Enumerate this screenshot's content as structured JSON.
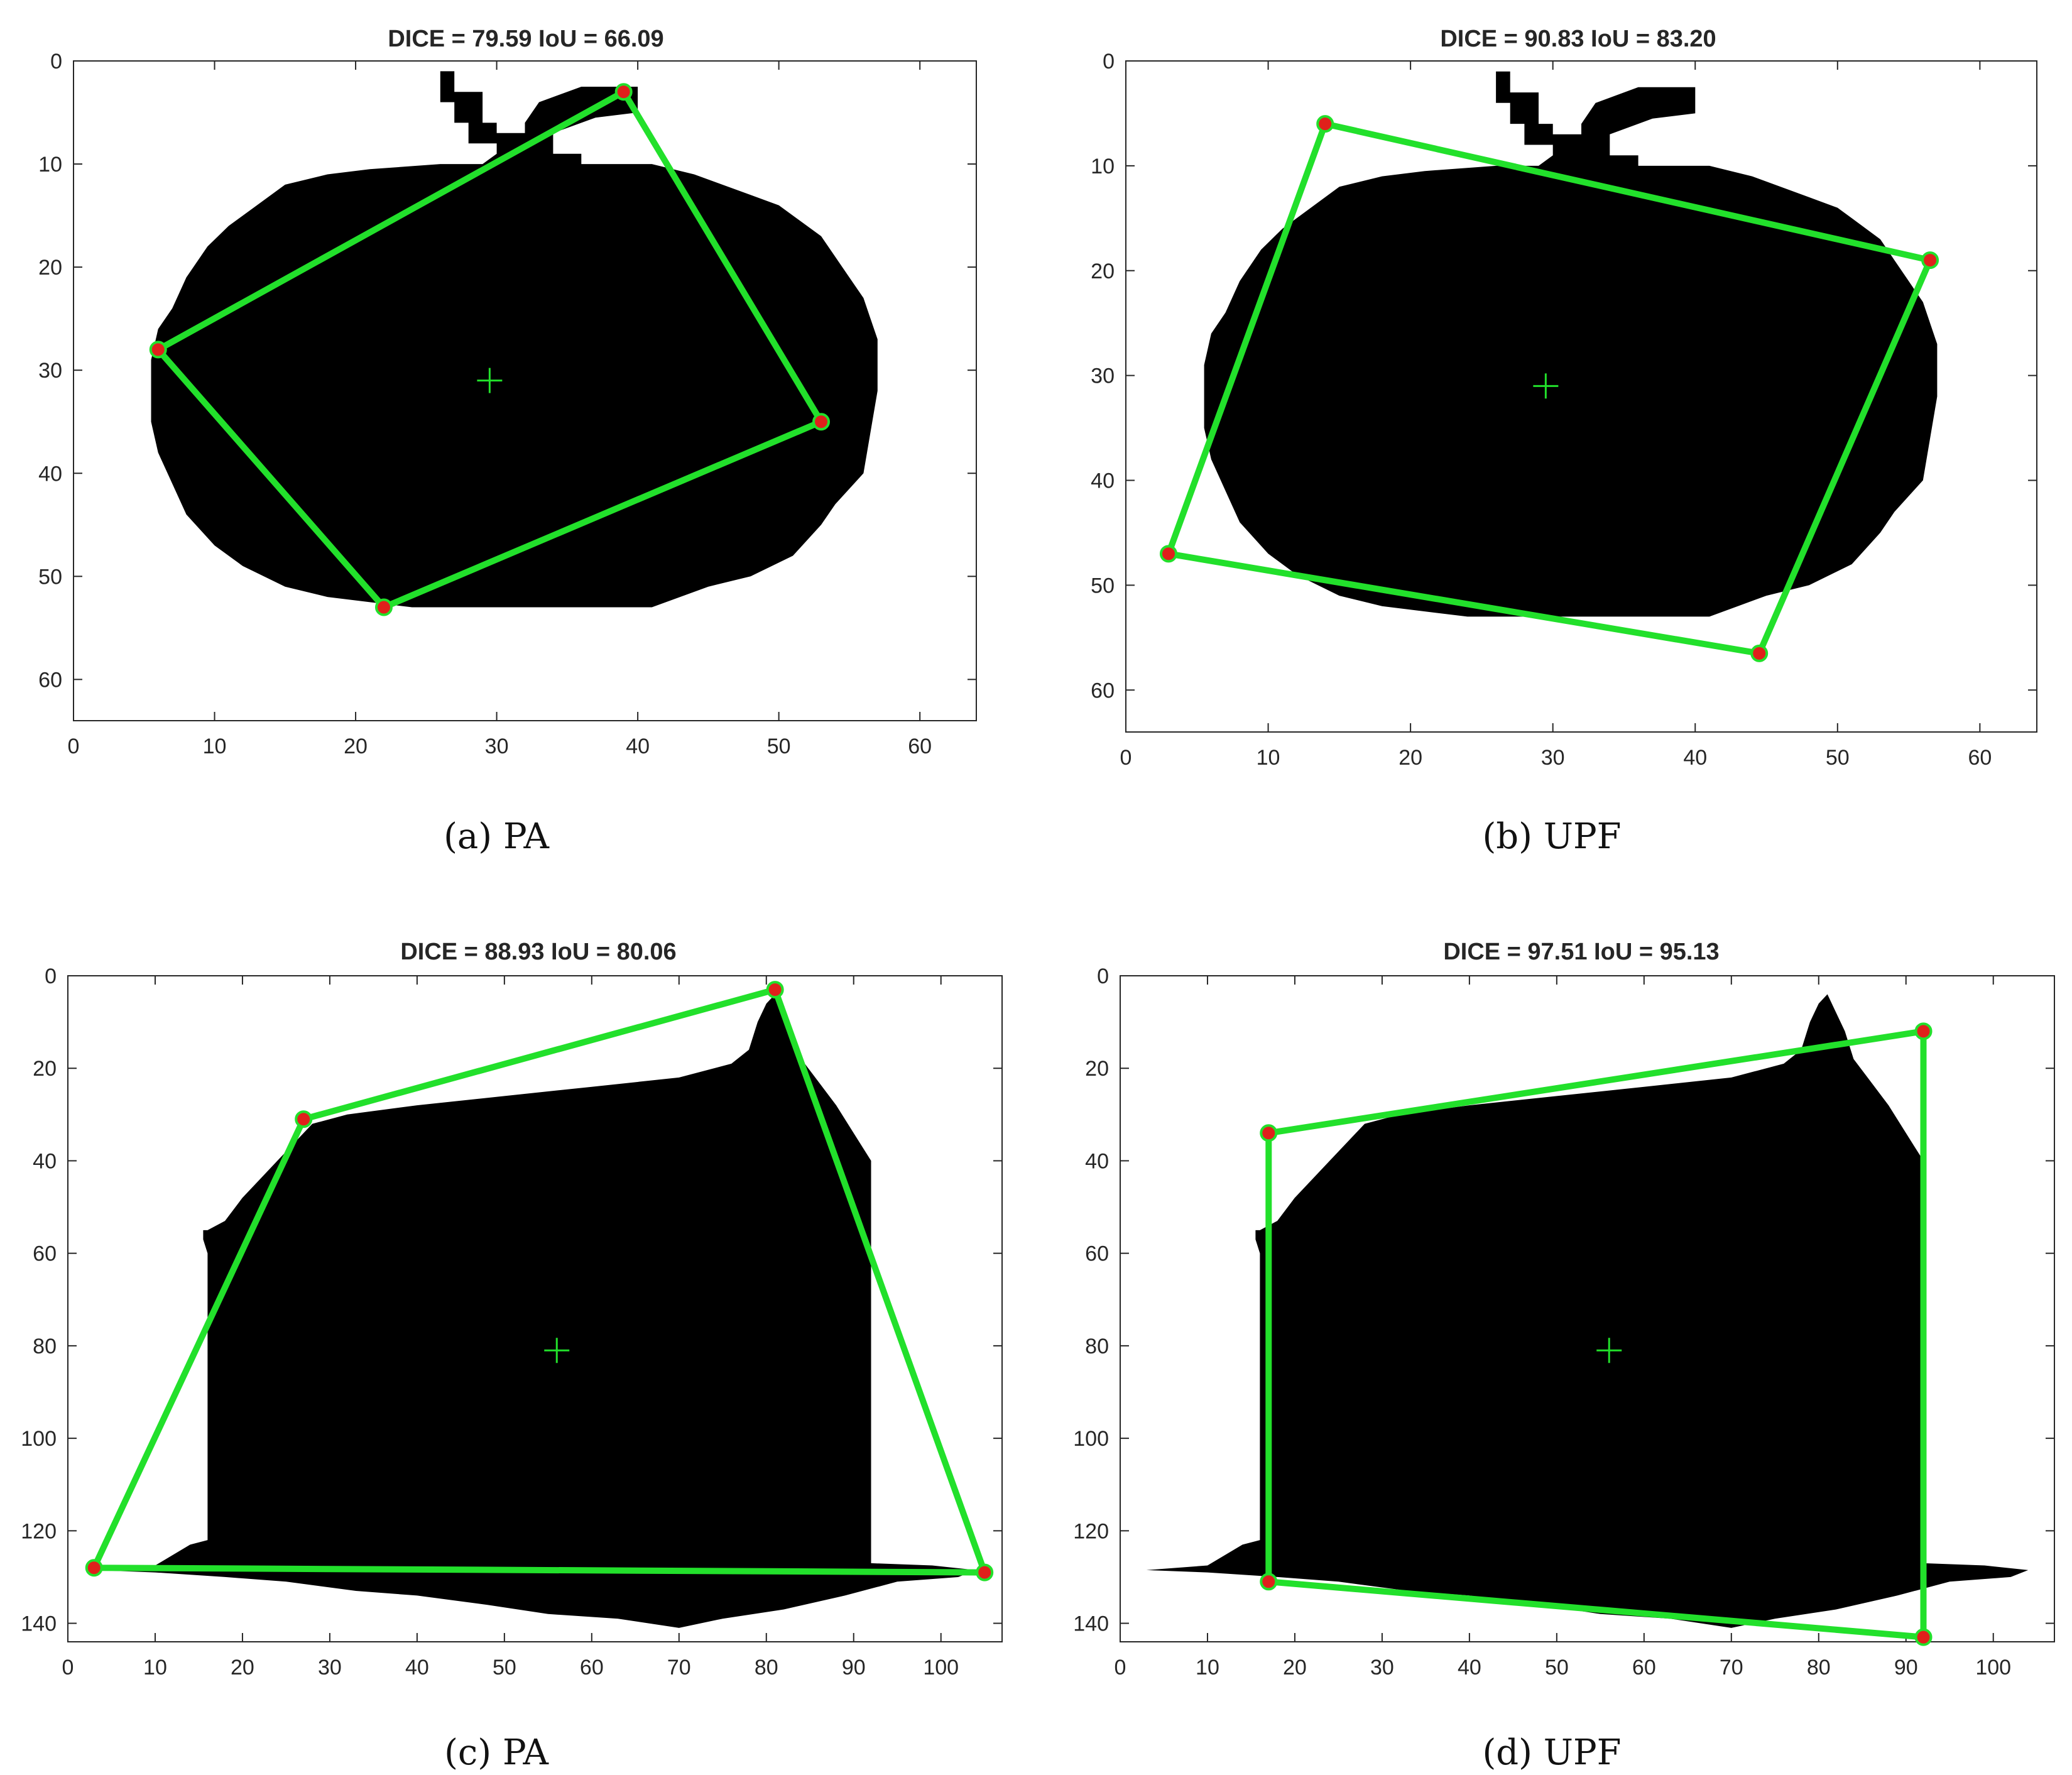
{
  "colors": {
    "object": "#000000",
    "polygon": "#22e02b",
    "vertex": "#e0201b",
    "background": "#ffffff"
  },
  "chart_data": [
    {
      "type": "scatter",
      "panel": "a",
      "title": "DICE = 79.59 IoU = 66.09",
      "caption": "(a)  PA",
      "xlim": [
        0,
        64
      ],
      "ylim": [
        0,
        64
      ],
      "y_reversed": true,
      "xticks": [
        0,
        10,
        20,
        30,
        40,
        50,
        60
      ],
      "yticks": [
        0,
        10,
        20,
        30,
        40,
        50,
        60
      ],
      "vertices": [
        [
          39,
          3
        ],
        [
          53,
          35
        ],
        [
          22,
          53
        ],
        [
          6,
          28
        ]
      ],
      "centroid": [
        29.5,
        31
      ],
      "shape_outline": [
        [
          26,
          1
        ],
        [
          27,
          1
        ],
        [
          27,
          3
        ],
        [
          29,
          3
        ],
        [
          29,
          6
        ],
        [
          30,
          6
        ],
        [
          30,
          7
        ],
        [
          32,
          7
        ],
        [
          32,
          6
        ],
        [
          33,
          4
        ],
        [
          36,
          2.5
        ],
        [
          40,
          2.5
        ],
        [
          40,
          5
        ],
        [
          37,
          5.5
        ],
        [
          34,
          7
        ],
        [
          34,
          9
        ],
        [
          36,
          9
        ],
        [
          36,
          10
        ],
        [
          41,
          10
        ],
        [
          44,
          11
        ],
        [
          46,
          12
        ],
        [
          48,
          13
        ],
        [
          50,
          14
        ],
        [
          51,
          15
        ],
        [
          53,
          17
        ],
        [
          54,
          19
        ],
        [
          55,
          21
        ],
        [
          56,
          23
        ],
        [
          56.5,
          25
        ],
        [
          57,
          27
        ],
        [
          57,
          32
        ],
        [
          56.5,
          36
        ],
        [
          56,
          40
        ],
        [
          54,
          43
        ],
        [
          53,
          45
        ],
        [
          51,
          48
        ],
        [
          48,
          50
        ],
        [
          45,
          51
        ],
        [
          43,
          52
        ],
        [
          41,
          53
        ],
        [
          30,
          53
        ],
        [
          24,
          53
        ],
        [
          18,
          52
        ],
        [
          15,
          51
        ],
        [
          12,
          49
        ],
        [
          10,
          47
        ],
        [
          8,
          44
        ],
        [
          7,
          41
        ],
        [
          6,
          38
        ],
        [
          5.5,
          35
        ],
        [
          5.5,
          29
        ],
        [
          6,
          26
        ],
        [
          7,
          24
        ],
        [
          8,
          21
        ],
        [
          9.5,
          18
        ],
        [
          11,
          16
        ],
        [
          13,
          14
        ],
        [
          15,
          12
        ],
        [
          18,
          11
        ],
        [
          21,
          10.5
        ],
        [
          26,
          10
        ],
        [
          29,
          10
        ],
        [
          30,
          9
        ],
        [
          30,
          8
        ],
        [
          28,
          8
        ],
        [
          28,
          6
        ],
        [
          27,
          6
        ],
        [
          27,
          4
        ],
        [
          26,
          4
        ]
      ]
    },
    {
      "type": "scatter",
      "panel": "b",
      "title": "DICE = 90.83 IoU = 83.20",
      "caption": "(b)  UPF",
      "xlim": [
        0,
        64
      ],
      "ylim": [
        0,
        64
      ],
      "y_reversed": true,
      "xticks": [
        0,
        10,
        20,
        30,
        40,
        50,
        60
      ],
      "yticks": [
        0,
        10,
        20,
        30,
        40,
        50,
        60
      ],
      "vertices": [
        [
          14,
          6
        ],
        [
          56.5,
          19
        ],
        [
          44.5,
          56.5
        ],
        [
          3,
          47
        ]
      ],
      "centroid": [
        29.5,
        31
      ],
      "shape_outline": [
        [
          26,
          1
        ],
        [
          27,
          1
        ],
        [
          27,
          3
        ],
        [
          29,
          3
        ],
        [
          29,
          6
        ],
        [
          30,
          6
        ],
        [
          30,
          7
        ],
        [
          32,
          7
        ],
        [
          32,
          6
        ],
        [
          33,
          4
        ],
        [
          36,
          2.5
        ],
        [
          40,
          2.5
        ],
        [
          40,
          5
        ],
        [
          37,
          5.5
        ],
        [
          34,
          7
        ],
        [
          34,
          9
        ],
        [
          36,
          9
        ],
        [
          36,
          10
        ],
        [
          41,
          10
        ],
        [
          44,
          11
        ],
        [
          46,
          12
        ],
        [
          48,
          13
        ],
        [
          50,
          14
        ],
        [
          51,
          15
        ],
        [
          53,
          17
        ],
        [
          54,
          19
        ],
        [
          55,
          21
        ],
        [
          56,
          23
        ],
        [
          56.5,
          25
        ],
        [
          57,
          27
        ],
        [
          57,
          32
        ],
        [
          56.5,
          36
        ],
        [
          56,
          40
        ],
        [
          54,
          43
        ],
        [
          53,
          45
        ],
        [
          51,
          48
        ],
        [
          48,
          50
        ],
        [
          45,
          51
        ],
        [
          43,
          52
        ],
        [
          41,
          53
        ],
        [
          30,
          53
        ],
        [
          24,
          53
        ],
        [
          18,
          52
        ],
        [
          15,
          51
        ],
        [
          12,
          49
        ],
        [
          10,
          47
        ],
        [
          8,
          44
        ],
        [
          7,
          41
        ],
        [
          6,
          38
        ],
        [
          5.5,
          35
        ],
        [
          5.5,
          29
        ],
        [
          6,
          26
        ],
        [
          7,
          24
        ],
        [
          8,
          21
        ],
        [
          9.5,
          18
        ],
        [
          11,
          16
        ],
        [
          13,
          14
        ],
        [
          15,
          12
        ],
        [
          18,
          11
        ],
        [
          21,
          10.5
        ],
        [
          26,
          10
        ],
        [
          29,
          10
        ],
        [
          30,
          9
        ],
        [
          30,
          8
        ],
        [
          28,
          8
        ],
        [
          28,
          6
        ],
        [
          27,
          6
        ],
        [
          27,
          4
        ],
        [
          26,
          4
        ]
      ]
    },
    {
      "type": "scatter",
      "panel": "c",
      "title": "DICE = 88.93 IoU = 80.06",
      "caption": "(c)  PA",
      "xlim": [
        0,
        107
      ],
      "ylim": [
        0,
        144
      ],
      "y_reversed": true,
      "xticks": [
        0,
        10,
        20,
        30,
        40,
        50,
        60,
        70,
        80,
        90,
        100
      ],
      "yticks": [
        0,
        20,
        40,
        60,
        80,
        100,
        120,
        140
      ],
      "vertices": [
        [
          81,
          3
        ],
        [
          105,
          129
        ],
        [
          3,
          128
        ],
        [
          27,
          31
        ]
      ],
      "centroid": [
        56,
        81
      ],
      "shape_outline": [
        [
          16,
          55
        ],
        [
          18,
          53
        ],
        [
          20,
          48
        ],
        [
          22,
          44
        ],
        [
          24,
          40
        ],
        [
          26,
          36
        ],
        [
          28,
          32
        ],
        [
          32,
          30
        ],
        [
          40,
          28
        ],
        [
          50,
          26
        ],
        [
          60,
          24
        ],
        [
          70,
          22
        ],
        [
          76,
          19
        ],
        [
          78,
          16
        ],
        [
          79,
          10
        ],
        [
          80,
          6
        ],
        [
          81,
          4
        ],
        [
          82,
          8
        ],
        [
          83,
          12
        ],
        [
          84,
          18
        ],
        [
          86,
          23
        ],
        [
          88,
          28
        ],
        [
          90,
          34
        ],
        [
          92,
          40
        ],
        [
          92,
          80
        ],
        [
          92,
          120
        ],
        [
          92,
          127
        ],
        [
          99,
          127.5
        ],
        [
          104,
          128.5
        ],
        [
          102,
          130
        ],
        [
          95,
          131
        ],
        [
          89,
          134
        ],
        [
          82,
          137
        ],
        [
          75,
          139
        ],
        [
          70,
          141
        ],
        [
          63,
          139
        ],
        [
          55,
          138
        ],
        [
          48,
          136
        ],
        [
          40,
          134
        ],
        [
          33,
          133
        ],
        [
          25,
          131
        ],
        [
          18,
          130
        ],
        [
          10,
          129
        ],
        [
          3,
          128.5
        ],
        [
          10,
          127.5
        ],
        [
          14,
          123
        ],
        [
          16,
          122
        ],
        [
          16,
          90
        ],
        [
          16,
          60
        ],
        [
          15.5,
          57
        ],
        [
          15.5,
          55
        ]
      ]
    },
    {
      "type": "scatter",
      "panel": "d",
      "title": "DICE = 97.51 IoU = 95.13",
      "caption": "(d)  UPF",
      "xlim": [
        0,
        107
      ],
      "ylim": [
        0,
        144
      ],
      "y_reversed": true,
      "xticks": [
        0,
        10,
        20,
        30,
        40,
        50,
        60,
        70,
        80,
        90,
        100
      ],
      "yticks": [
        0,
        20,
        40,
        60,
        80,
        100,
        120,
        140
      ],
      "vertices": [
        [
          17,
          34
        ],
        [
          92,
          12
        ],
        [
          92,
          143
        ],
        [
          17,
          131
        ]
      ],
      "centroid": [
        56,
        81
      ],
      "shape_outline": [
        [
          16,
          55
        ],
        [
          18,
          53
        ],
        [
          20,
          48
        ],
        [
          22,
          44
        ],
        [
          24,
          40
        ],
        [
          26,
          36
        ],
        [
          28,
          32
        ],
        [
          32,
          30
        ],
        [
          40,
          28
        ],
        [
          50,
          26
        ],
        [
          60,
          24
        ],
        [
          70,
          22
        ],
        [
          76,
          19
        ],
        [
          78,
          16
        ],
        [
          79,
          10
        ],
        [
          80,
          6
        ],
        [
          81,
          4
        ],
        [
          82,
          8
        ],
        [
          83,
          12
        ],
        [
          84,
          18
        ],
        [
          86,
          23
        ],
        [
          88,
          28
        ],
        [
          90,
          34
        ],
        [
          92,
          40
        ],
        [
          92,
          80
        ],
        [
          92,
          120
        ],
        [
          92,
          127
        ],
        [
          99,
          127.5
        ],
        [
          104,
          128.5
        ],
        [
          102,
          130
        ],
        [
          95,
          131
        ],
        [
          89,
          134
        ],
        [
          82,
          137
        ],
        [
          75,
          139
        ],
        [
          70,
          141
        ],
        [
          63,
          139
        ],
        [
          55,
          138
        ],
        [
          48,
          136
        ],
        [
          40,
          134
        ],
        [
          33,
          133
        ],
        [
          25,
          131
        ],
        [
          18,
          130
        ],
        [
          10,
          129
        ],
        [
          3,
          128.5
        ],
        [
          10,
          127.5
        ],
        [
          14,
          123
        ],
        [
          16,
          122
        ],
        [
          16,
          90
        ],
        [
          16,
          60
        ],
        [
          15.5,
          57
        ],
        [
          15.5,
          55
        ]
      ]
    }
  ]
}
